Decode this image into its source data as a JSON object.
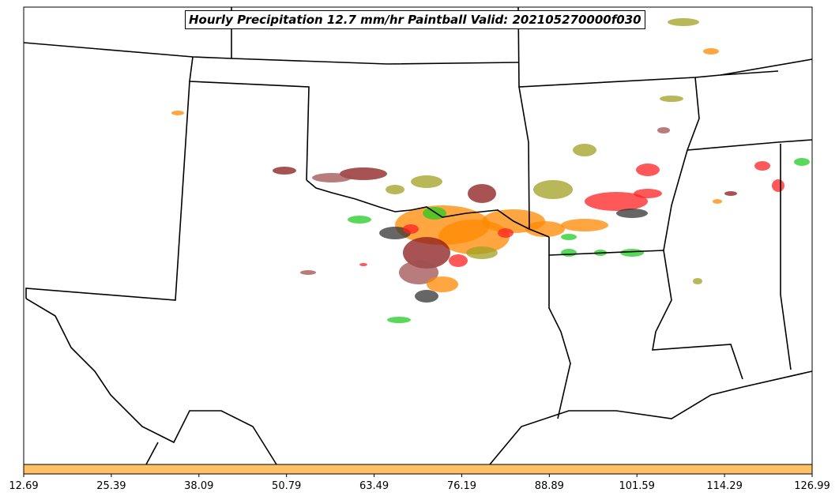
{
  "title": "Hourly Precipitation 12.7 mm/hr Paintball Valid: 202105270000f030",
  "colorbar": {
    "color": "#ffc166",
    "ticks": [
      "12.69",
      "25.39",
      "38.09",
      "50.79",
      "63.49",
      "76.19",
      "88.89",
      "101.59",
      "114.29",
      "126.99"
    ]
  },
  "member_colors": [
    "#8b1a1a",
    "#a0a020",
    "#22cc22",
    "#ff8800",
    "#ff2020",
    "#333333",
    "#ff6060",
    "#a05050"
  ]
}
